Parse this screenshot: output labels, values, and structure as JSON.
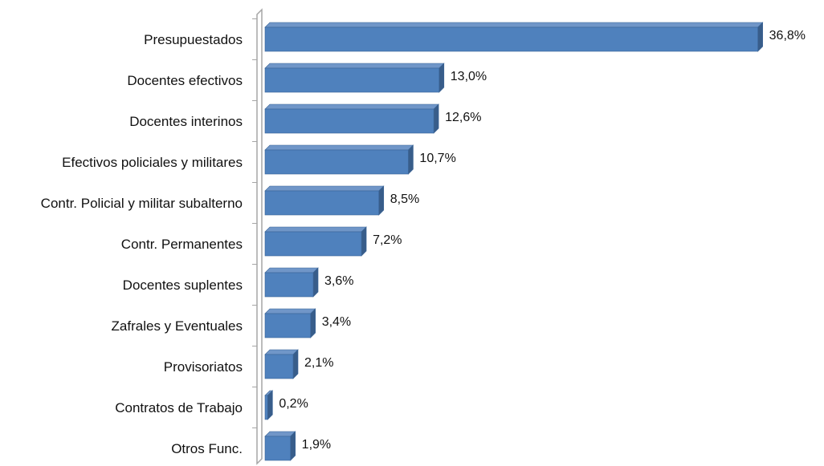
{
  "chart_data": {
    "type": "bar",
    "orientation": "horizontal",
    "style": "3d",
    "categories": [
      "Presupuestados",
      "Docentes efectivos",
      "Docentes interinos",
      "Efectivos policiales y militares",
      "Contr. Policial y militar subalterno",
      "Contr. Permanentes",
      "Docentes suplentes",
      "Zafrales y Eventuales",
      "Provisoriatos",
      "Contratos de Trabajo",
      "Otros Func."
    ],
    "values": [
      36.8,
      13.0,
      12.6,
      10.7,
      8.5,
      7.2,
      3.6,
      3.4,
      2.1,
      0.2,
      1.9
    ],
    "value_labels": [
      "36,8%",
      "13,0%",
      "12,6%",
      "10,7%",
      "8,5%",
      "7,2%",
      "3,6%",
      "3,4%",
      "2,1%",
      "0,2%",
      "1,9%"
    ],
    "xlim": [
      0,
      37
    ],
    "grid": false,
    "legend": "none",
    "colors": {
      "bar_front": "#4f81bd",
      "bar_top": "#7096c8",
      "bar_side": "#385d8a",
      "bar_outline": "#3a6496",
      "axis_wall": "#a6a6a6"
    }
  }
}
